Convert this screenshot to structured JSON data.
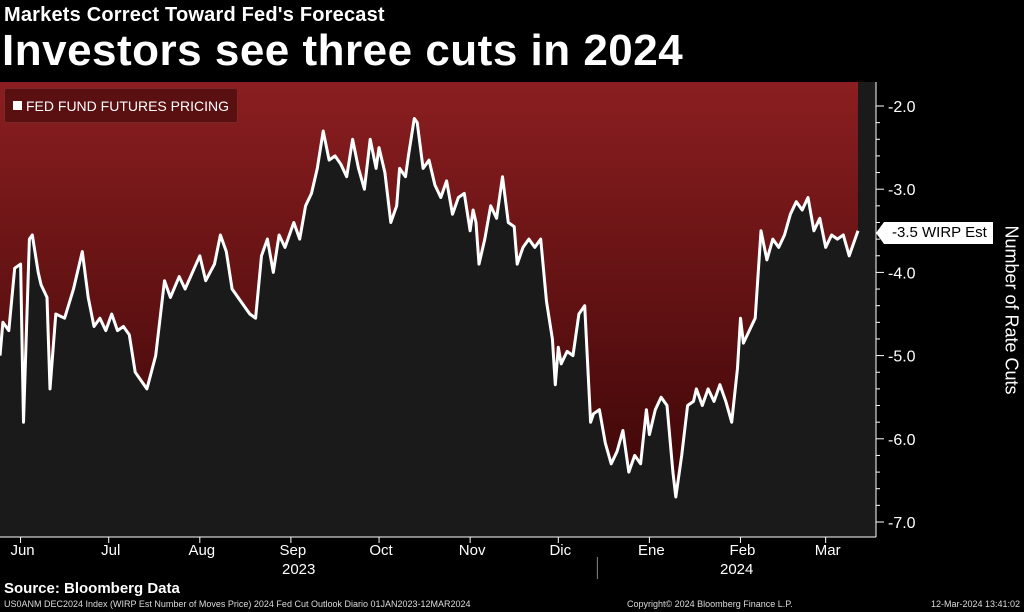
{
  "header": {
    "subtitle": "Markets Correct Toward Fed's Forecast",
    "title": "Investors see three cuts in 2024"
  },
  "legend": {
    "label": "FED FUND FUTURES PRICING",
    "swatch_color": "#ffffff"
  },
  "last_value_label": "-3.5 WIRP Est",
  "source": "Source: Bloomberg Data",
  "footer": {
    "left": "US0ANM DEC2024 Index (WIRP Est Number of Moves Price) 2024 Fed Cut Outlook  Diario 01JAN2023-12MAR2024",
    "mid": "Copyright© 2024 Bloomberg Finance L.P.",
    "right": "12-Mar-2024 13:41:02"
  },
  "colors": {
    "background": "#000000",
    "fill_top": "#8b1e20",
    "fill_bottom": "#3c0607",
    "area_below": "#1a1a1a",
    "line": "#ffffff"
  },
  "chart_data": {
    "type": "line",
    "ylabel": "Number of Rate Cuts",
    "xlabel": "",
    "ylim": [
      -7.0,
      -1.7
    ],
    "yticks": [
      -2.0,
      -3.0,
      -4.0,
      -5.0,
      -6.0,
      -7.0
    ],
    "ytick_labels": [
      "-2.0",
      "-3.0",
      "-4.0",
      "-5.0",
      "-6.0",
      "-7.0"
    ],
    "grid": false,
    "legend_position": "top-left",
    "area_fill": "above-line",
    "month_labels": [
      {
        "date": "2023-06-01",
        "label": "Jun"
      },
      {
        "date": "2023-07-01",
        "label": "Jul"
      },
      {
        "date": "2023-08-01",
        "label": "Aug"
      },
      {
        "date": "2023-09-01",
        "label": "Sep"
      },
      {
        "date": "2023-10-01",
        "label": "Oct"
      },
      {
        "date": "2023-11-01",
        "label": "Nov"
      },
      {
        "date": "2023-12-01",
        "label": "Dic"
      },
      {
        "date": "2024-01-01",
        "label": "Ene"
      },
      {
        "date": "2024-02-01",
        "label": "Feb"
      },
      {
        "date": "2024-03-01",
        "label": "Mar"
      }
    ],
    "year_labels": [
      {
        "label": "2023",
        "from": "2023-05-25",
        "to": "2023-12-31"
      },
      {
        "label": "2024",
        "from": "2024-01-01",
        "to": "2024-03-12"
      }
    ],
    "series": [
      {
        "values": [
          [
            "2023-05-25",
            -5.0
          ],
          [
            "2023-05-26",
            -4.6
          ],
          [
            "2023-05-28",
            -4.7
          ],
          [
            "2023-05-30",
            -3.95
          ],
          [
            "2023-06-01",
            -3.9
          ],
          [
            "2023-06-02",
            -5.8
          ],
          [
            "2023-06-04",
            -3.6
          ],
          [
            "2023-06-05",
            -3.55
          ],
          [
            "2023-06-07",
            -4.0
          ],
          [
            "2023-06-08",
            -4.15
          ],
          [
            "2023-06-10",
            -4.3
          ],
          [
            "2023-06-11",
            -5.4
          ],
          [
            "2023-06-13",
            -4.5
          ],
          [
            "2023-06-16",
            -4.55
          ],
          [
            "2023-06-19",
            -4.2
          ],
          [
            "2023-06-22",
            -3.75
          ],
          [
            "2023-06-24",
            -4.3
          ],
          [
            "2023-06-26",
            -4.65
          ],
          [
            "2023-06-28",
            -4.55
          ],
          [
            "2023-06-30",
            -4.7
          ],
          [
            "2023-07-02",
            -4.5
          ],
          [
            "2023-07-04",
            -4.7
          ],
          [
            "2023-07-06",
            -4.65
          ],
          [
            "2023-07-08",
            -4.75
          ],
          [
            "2023-07-10",
            -5.2
          ],
          [
            "2023-07-14",
            -5.4
          ],
          [
            "2023-07-17",
            -5.0
          ],
          [
            "2023-07-20",
            -4.1
          ],
          [
            "2023-07-22",
            -4.3
          ],
          [
            "2023-07-25",
            -4.05
          ],
          [
            "2023-07-27",
            -4.2
          ],
          [
            "2023-08-01",
            -3.8
          ],
          [
            "2023-08-03",
            -4.1
          ],
          [
            "2023-08-06",
            -3.9
          ],
          [
            "2023-08-08",
            -3.55
          ],
          [
            "2023-08-10",
            -3.75
          ],
          [
            "2023-08-12",
            -4.2
          ],
          [
            "2023-08-14",
            -4.3
          ],
          [
            "2023-08-18",
            -4.5
          ],
          [
            "2023-08-20",
            -4.55
          ],
          [
            "2023-08-22",
            -3.8
          ],
          [
            "2023-08-24",
            -3.6
          ],
          [
            "2023-08-26",
            -4.0
          ],
          [
            "2023-08-28",
            -3.55
          ],
          [
            "2023-08-30",
            -3.7
          ],
          [
            "2023-09-02",
            -3.4
          ],
          [
            "2023-09-04",
            -3.6
          ],
          [
            "2023-09-06",
            -3.2
          ],
          [
            "2023-09-08",
            -3.05
          ],
          [
            "2023-09-10",
            -2.75
          ],
          [
            "2023-09-12",
            -2.3
          ],
          [
            "2023-09-14",
            -2.65
          ],
          [
            "2023-09-16",
            -2.6
          ],
          [
            "2023-09-18",
            -2.7
          ],
          [
            "2023-09-20",
            -2.85
          ],
          [
            "2023-09-22",
            -2.4
          ],
          [
            "2023-09-24",
            -2.75
          ],
          [
            "2023-09-26",
            -3.0
          ],
          [
            "2023-09-28",
            -2.4
          ],
          [
            "2023-09-30",
            -2.75
          ],
          [
            "2023-10-01",
            -2.5
          ],
          [
            "2023-10-03",
            -2.8
          ],
          [
            "2023-10-05",
            -3.4
          ],
          [
            "2023-10-07",
            -3.2
          ],
          [
            "2023-10-08",
            -2.75
          ],
          [
            "2023-10-10",
            -2.85
          ],
          [
            "2023-10-11",
            -2.6
          ],
          [
            "2023-10-13",
            -2.15
          ],
          [
            "2023-10-14",
            -2.2
          ],
          [
            "2023-10-16",
            -2.75
          ],
          [
            "2023-10-17",
            -2.7
          ],
          [
            "2023-10-18",
            -2.65
          ],
          [
            "2023-10-20",
            -2.95
          ],
          [
            "2023-10-22",
            -3.1
          ],
          [
            "2023-10-24",
            -2.9
          ],
          [
            "2023-10-26",
            -3.3
          ],
          [
            "2023-10-28",
            -3.1
          ],
          [
            "2023-10-30",
            -3.05
          ],
          [
            "2023-11-01",
            -3.5
          ],
          [
            "2023-11-02",
            -3.25
          ],
          [
            "2023-11-03",
            -3.4
          ],
          [
            "2023-11-04",
            -3.9
          ],
          [
            "2023-11-06",
            -3.6
          ],
          [
            "2023-11-08",
            -3.2
          ],
          [
            "2023-11-10",
            -3.35
          ],
          [
            "2023-11-12",
            -2.85
          ],
          [
            "2023-11-14",
            -3.4
          ],
          [
            "2023-11-16",
            -3.45
          ],
          [
            "2023-11-17",
            -3.9
          ],
          [
            "2023-11-19",
            -3.7
          ],
          [
            "2023-11-21",
            -3.6
          ],
          [
            "2023-11-23",
            -3.7
          ],
          [
            "2023-11-25",
            -3.6
          ],
          [
            "2023-11-27",
            -4.35
          ],
          [
            "2023-11-29",
            -4.8
          ],
          [
            "2023-11-30",
            -5.35
          ],
          [
            "2023-12-01",
            -4.9
          ],
          [
            "2023-12-02",
            -5.1
          ],
          [
            "2023-12-04",
            -4.95
          ],
          [
            "2023-12-06",
            -5.0
          ],
          [
            "2023-12-08",
            -4.5
          ],
          [
            "2023-12-10",
            -4.4
          ],
          [
            "2023-12-12",
            -5.8
          ],
          [
            "2023-12-13",
            -5.7
          ],
          [
            "2023-12-15",
            -5.65
          ],
          [
            "2023-12-17",
            -6.05
          ],
          [
            "2023-12-19",
            -6.3
          ],
          [
            "2023-12-21",
            -6.15
          ],
          [
            "2023-12-23",
            -5.9
          ],
          [
            "2023-12-25",
            -6.4
          ],
          [
            "2023-12-27",
            -6.2
          ],
          [
            "2023-12-29",
            -6.3
          ],
          [
            "2023-12-31",
            -5.65
          ],
          [
            "2024-01-01",
            -5.95
          ],
          [
            "2024-01-03",
            -5.65
          ],
          [
            "2024-01-05",
            -5.5
          ],
          [
            "2024-01-07",
            -5.6
          ],
          [
            "2024-01-09",
            -6.4
          ],
          [
            "2024-01-10",
            -6.7
          ],
          [
            "2024-01-12",
            -6.2
          ],
          [
            "2024-01-14",
            -5.6
          ],
          [
            "2024-01-16",
            -5.55
          ],
          [
            "2024-01-17",
            -5.4
          ],
          [
            "2024-01-19",
            -5.6
          ],
          [
            "2024-01-21",
            -5.4
          ],
          [
            "2024-01-23",
            -5.55
          ],
          [
            "2024-01-25",
            -5.35
          ],
          [
            "2024-01-27",
            -5.55
          ],
          [
            "2024-01-29",
            -5.8
          ],
          [
            "2024-01-31",
            -5.15
          ],
          [
            "2024-02-01",
            -4.55
          ],
          [
            "2024-02-02",
            -4.85
          ],
          [
            "2024-02-04",
            -4.7
          ],
          [
            "2024-02-06",
            -4.55
          ],
          [
            "2024-02-08",
            -3.5
          ],
          [
            "2024-02-10",
            -3.85
          ],
          [
            "2024-02-12",
            -3.6
          ],
          [
            "2024-02-14",
            -3.7
          ],
          [
            "2024-02-16",
            -3.55
          ],
          [
            "2024-02-18",
            -3.3
          ],
          [
            "2024-02-20",
            -3.15
          ],
          [
            "2024-02-22",
            -3.25
          ],
          [
            "2024-02-24",
            -3.1
          ],
          [
            "2024-02-26",
            -3.5
          ],
          [
            "2024-02-28",
            -3.35
          ],
          [
            "2024-03-01",
            -3.7
          ],
          [
            "2024-03-03",
            -3.55
          ],
          [
            "2024-03-05",
            -3.6
          ],
          [
            "2024-03-07",
            -3.55
          ],
          [
            "2024-03-09",
            -3.8
          ],
          [
            "2024-03-12",
            -3.5
          ]
        ]
      }
    ]
  }
}
